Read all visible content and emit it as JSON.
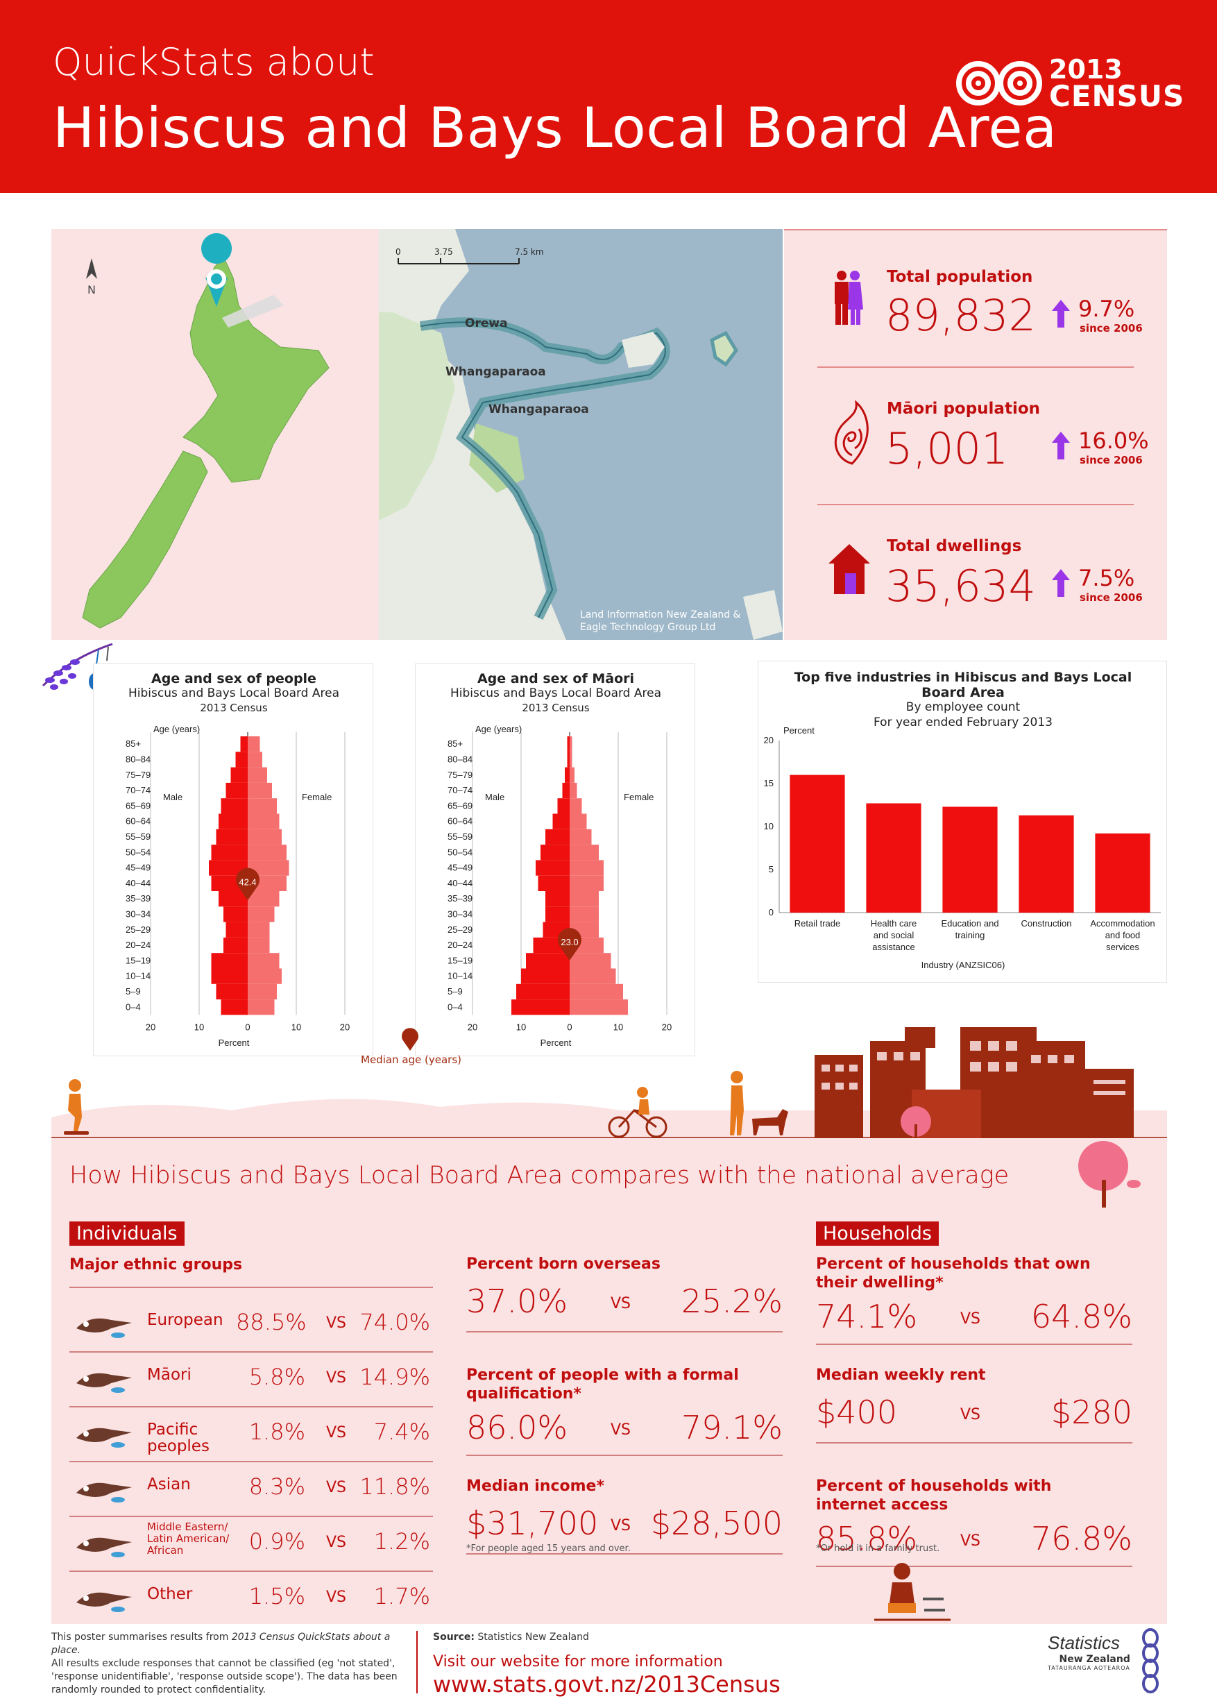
{
  "header": {
    "pretitle": "QuickStats about",
    "title": "Hibiscus and Bays Local Board Area",
    "logo_year": "2013",
    "logo_word": "CENSUS"
  },
  "map": {
    "north_label": "N",
    "scale_labels": [
      "0",
      "3.75",
      "7.5 km"
    ],
    "places": [
      "Orewa",
      "Whangaparaoa",
      "Whangaparaoa"
    ],
    "credit_line1": "Land Information New Zealand &",
    "credit_line2": "Eagle Technology Group Ltd"
  },
  "stats": [
    {
      "label": "Total population",
      "value": "89,832",
      "change": "9.7%",
      "since": "since 2006",
      "icon": "people-icon"
    },
    {
      "label": "Māori population",
      "value": "5,001",
      "change": "16.0%",
      "since": "since 2006",
      "icon": "koru-icon"
    },
    {
      "label": "Total dwellings",
      "value": "35,634",
      "change": "7.5%",
      "since": "since 2006",
      "icon": "house-icon"
    }
  ],
  "pyramid_people": {
    "title": "Age and sex of people",
    "subtitle": "Hibiscus and Bays Local Board Area",
    "year": "2013 Census",
    "ylabel": "Age (years)",
    "male": "Male",
    "female": "Female",
    "xlabel": "Percent",
    "median": "42.4"
  },
  "pyramid_maori": {
    "title": "Age and sex of Māori",
    "subtitle": "Hibiscus and Bays Local Board Area",
    "year": "2013 Census",
    "ylabel": "Age (years)",
    "male": "Male",
    "female": "Female",
    "xlabel": "Percent",
    "median": "23.0"
  },
  "median_legend": "Median age (years)",
  "industries": {
    "title_line1": "Top five industries in Hibiscus and Bays Local",
    "title_line2": "Board Area",
    "sub1": "By employee count",
    "sub2": "For year ended February 2013",
    "ylabel": "Percent",
    "xlabel": "Industry (ANZSIC06)"
  },
  "chart_data": [
    {
      "type": "bar",
      "title": "Age and sex of people",
      "ylabel": "Age (years)",
      "xlabel": "Percent",
      "categories": [
        "0–4",
        "5–9",
        "10–14",
        "15–19",
        "20–24",
        "25–29",
        "30–34",
        "35–39",
        "40–44",
        "45–49",
        "50–54",
        "55–59",
        "60–64",
        "65–69",
        "70–74",
        "75–79",
        "80–84",
        "85+"
      ],
      "series": [
        {
          "name": "Male",
          "values": [
            5.5,
            6.5,
            7.5,
            7.5,
            5.0,
            4.5,
            5.0,
            6.0,
            7.5,
            8.0,
            7.5,
            6.5,
            6.0,
            5.5,
            4.5,
            3.5,
            2.5,
            1.5
          ]
        },
        {
          "name": "Female",
          "values": [
            5.5,
            6.0,
            7.0,
            6.5,
            4.5,
            4.5,
            5.5,
            6.5,
            8.0,
            8.5,
            8.0,
            7.0,
            6.5,
            6.0,
            5.0,
            4.0,
            3.0,
            2.5
          ]
        }
      ],
      "xlim": [
        -20,
        20
      ],
      "median_age": 42.4
    },
    {
      "type": "bar",
      "title": "Age and sex of Māori",
      "ylabel": "Age (years)",
      "xlabel": "Percent",
      "categories": [
        "0–4",
        "5–9",
        "10–14",
        "15–19",
        "20–24",
        "25–29",
        "30–34",
        "35–39",
        "40–44",
        "45–49",
        "50–54",
        "55–59",
        "60–64",
        "65–69",
        "70–74",
        "75–79",
        "80–84",
        "85+"
      ],
      "series": [
        {
          "name": "Male",
          "values": [
            12.0,
            11.0,
            10.0,
            9.0,
            7.5,
            5.5,
            5.0,
            5.0,
            6.5,
            7.0,
            6.0,
            5.0,
            3.5,
            2.5,
            1.5,
            1.0,
            0.5,
            0.5
          ]
        },
        {
          "name": "Female",
          "values": [
            12.0,
            11.0,
            9.5,
            8.5,
            7.0,
            6.0,
            6.0,
            6.0,
            7.0,
            7.0,
            6.0,
            4.5,
            3.5,
            2.5,
            1.5,
            1.0,
            0.5,
            0.5
          ]
        }
      ],
      "xlim": [
        -20,
        20
      ],
      "median_age": 23.0
    },
    {
      "type": "bar",
      "title": "Top five industries in Hibiscus and Bays Local Board Area",
      "ylabel": "Percent",
      "xlabel": "Industry (ANZSIC06)",
      "categories": [
        "Retail trade",
        "Health care and social assistance",
        "Education and training",
        "Construction",
        "Accommodation and food services"
      ],
      "values": [
        16.0,
        12.7,
        12.3,
        11.3,
        9.2
      ],
      "ylim": [
        0,
        20
      ],
      "yticks": [
        0,
        5,
        10,
        15,
        20
      ]
    }
  ],
  "compare": {
    "title": "How Hibiscus and Bays Local Board Area compares with the national average",
    "individuals_tag": "Individuals",
    "households_tag": "Households",
    "vs": "VS",
    "ethnic_heading": "Major ethnic groups",
    "ethnic": [
      {
        "label": "European",
        "local": "88.5%",
        "national": "74.0%"
      },
      {
        "label": "Māori",
        "local": "5.8%",
        "national": "14.9%"
      },
      {
        "label": "Pacific peoples",
        "local": "1.8%",
        "national": "7.4%"
      },
      {
        "label": "Asian",
        "local": "8.3%",
        "national": "11.8%"
      },
      {
        "label": "Middle Eastern/ Latin American/ African",
        "local": "0.9%",
        "national": "1.2%"
      },
      {
        "label": "Other",
        "local": "1.5%",
        "national": "1.7%"
      }
    ],
    "middle": [
      {
        "heading": "Percent born overseas",
        "local": "37.0%",
        "national": "25.2%"
      },
      {
        "heading": "Percent of people with a formal qualification*",
        "local": "86.0%",
        "national": "79.1%"
      },
      {
        "heading": "Median income*",
        "local": "$31,700",
        "national": "$28,500"
      }
    ],
    "middle_note": "*For people aged 15 years and over.",
    "households": [
      {
        "heading": "Percent of households that own their dwelling*",
        "local": "74.1%",
        "national": "64.8%"
      },
      {
        "heading": "Median weekly rent",
        "local": "$400",
        "national": "$280"
      },
      {
        "heading": "Percent of households with internet access",
        "local": "85.8%",
        "national": "76.8%"
      }
    ],
    "households_note": "*Or hold it in a family trust."
  },
  "footer": {
    "note_pre": "This poster summarises results from",
    "note_italic": "2013 Census QuickStats about a place.",
    "note_line2": "All results exclude responses that cannot be classified (eg 'not stated',",
    "note_line3": "'response unidentifiable', 'response outside scope'). The data has been",
    "note_line4": "randomly rounded to protect confidentiality.",
    "source_label": "Source:",
    "source": "Statistics New Zealand",
    "visit": "Visit our website for more information",
    "url": "www.stats.govt.nz/2013Census",
    "org_line1": "Statistics",
    "org_line2": "New Zealand",
    "org_line3": "TATAURANGA AOTEAROA"
  },
  "colors": {
    "brand_red": "#e0120c",
    "dark_red": "#c00d0d",
    "male_bar": "#ef0f0f",
    "female_bar": "#f56f6f",
    "pink_bg": "#fbe3e3",
    "arrow_purple": "#9b35e8",
    "map_green": "#8cc75e",
    "building_brown": "#9c2a10"
  }
}
